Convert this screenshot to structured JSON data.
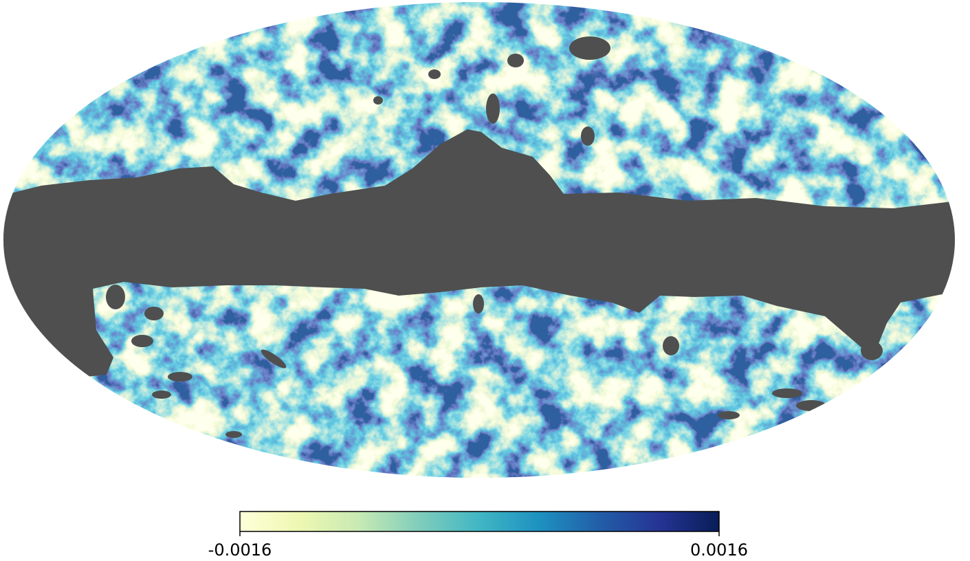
{
  "chart_data": {
    "type": "mollweide-map",
    "colorbar": {
      "lim": [
        -0.0016,
        0.0016
      ],
      "ticks": [
        -0.0016,
        0.0016
      ],
      "colors": [
        "#ffffd9",
        "#edf8b1",
        "#c7e9b4",
        "#7fcdbb",
        "#41b6c4",
        "#1d91c0",
        "#225ea8",
        "#253494",
        "#081d58"
      ]
    },
    "mask_color": "#4f4f4f"
  }
}
